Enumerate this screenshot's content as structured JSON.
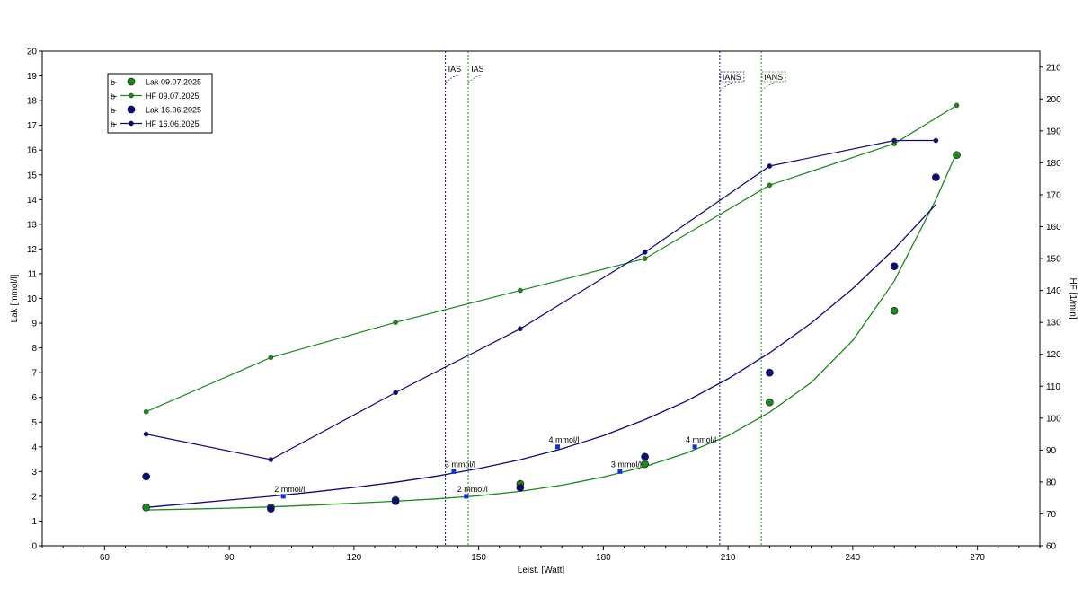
{
  "chart_data": {
    "type": "line",
    "xlabel": "Leist. [Watt]",
    "ylabel_left": "Lak [mmol/l]",
    "ylabel_right": "HF [1/min]",
    "xlim": [
      45,
      285
    ],
    "xticks": [
      60,
      90,
      120,
      150,
      180,
      210,
      240,
      270
    ],
    "ylim_left": [
      0,
      20
    ],
    "yticks_left": [
      0,
      1,
      2,
      3,
      4,
      5,
      6,
      7,
      8,
      9,
      10,
      11,
      12,
      13,
      14,
      15,
      16,
      17,
      18,
      19,
      20
    ],
    "ylim_right": [
      60,
      215
    ],
    "yticks_right": [
      60,
      70,
      80,
      90,
      100,
      110,
      120,
      130,
      140,
      150,
      160,
      170,
      180,
      190,
      200,
      210
    ],
    "grid": false,
    "legend_position": "top-left",
    "legend": [
      {
        "label": "Lak 09.07.2025",
        "color": "#1a8a1a",
        "kind": "dot"
      },
      {
        "label": "HF 09.07.2025",
        "color": "#1a8a1a",
        "kind": "line"
      },
      {
        "label": "Lak 16.06.2025",
        "color": "#0a0a80",
        "kind": "dot"
      },
      {
        "label": "HF 16.06.2025",
        "color": "#0a0a80",
        "kind": "line"
      }
    ],
    "series": [
      {
        "name": "Lak 09.07.2025",
        "axis": "left",
        "color": "#1a8a1a",
        "kind": "dot",
        "x": [
          70,
          100,
          130,
          160,
          190,
          220,
          250,
          265
        ],
        "y": [
          1.55,
          1.55,
          1.85,
          2.5,
          3.3,
          5.8,
          9.5,
          15.8
        ]
      },
      {
        "name": "HF 09.07.2025",
        "axis": "right",
        "color": "#1a8a1a",
        "kind": "line",
        "x": [
          70,
          100,
          130,
          160,
          190,
          220,
          250,
          265
        ],
        "y": [
          102,
          119,
          130,
          140,
          150,
          173,
          186,
          198
        ]
      },
      {
        "name": "Lak 16.06.2025",
        "axis": "left",
        "color": "#0a0a80",
        "kind": "dot",
        "x": [
          70,
          100,
          130,
          160,
          190,
          220,
          250,
          260
        ],
        "y": [
          2.8,
          1.5,
          1.8,
          2.35,
          3.6,
          7.0,
          11.3,
          14.9
        ]
      },
      {
        "name": "HF 16.06.2025",
        "axis": "right",
        "color": "#0a0a80",
        "kind": "line",
        "x": [
          70,
          100,
          130,
          160,
          190,
          220,
          250,
          260
        ],
        "y": [
          95,
          87,
          108,
          128,
          152,
          179,
          187,
          187
        ]
      }
    ],
    "fit_curves": [
      {
        "series": "Lak 09.07.2025",
        "color": "#1a8a1a",
        "x": [
          70,
          80,
          90,
          100,
          110,
          120,
          130,
          140,
          150,
          160,
          170,
          180,
          190,
          200,
          210,
          220,
          230,
          240,
          250,
          260,
          265
        ],
        "y": [
          1.45,
          1.48,
          1.52,
          1.57,
          1.64,
          1.72,
          1.8,
          1.9,
          2.02,
          2.2,
          2.45,
          2.78,
          3.2,
          3.75,
          4.45,
          5.4,
          6.6,
          8.3,
          10.7,
          14.0,
          15.9
        ]
      },
      {
        "series": "Lak 16.06.2025",
        "color": "#0a0a80",
        "x": [
          70,
          80,
          90,
          100,
          110,
          120,
          130,
          140,
          150,
          160,
          170,
          180,
          190,
          200,
          210,
          220,
          230,
          240,
          250,
          260
        ],
        "y": [
          1.55,
          1.7,
          1.85,
          2.0,
          2.17,
          2.36,
          2.57,
          2.82,
          3.12,
          3.48,
          3.92,
          4.45,
          5.1,
          5.85,
          6.75,
          7.8,
          9.0,
          10.4,
          12.0,
          13.8
        ]
      }
    ],
    "threshold_markers": [
      {
        "label": "2 mmol/l",
        "x": 103,
        "y": 2.0,
        "curve": "Lak 16.06.2025"
      },
      {
        "label": "3 mmol/l",
        "x": 144,
        "y": 3.0,
        "curve": "Lak 16.06.2025"
      },
      {
        "label": "4 mmol/l",
        "x": 169,
        "y": 4.0,
        "curve": "Lak 16.06.2025"
      },
      {
        "label": "2 mmol/l",
        "x": 147,
        "y": 2.0,
        "curve": "Lak 09.07.2025"
      },
      {
        "label": "3 mmol/l",
        "x": 184,
        "y": 3.0,
        "curve": "Lak 09.07.2025"
      },
      {
        "label": "4 mmol/l",
        "x": 202,
        "y": 4.0,
        "curve": "Lak 09.07.2025"
      }
    ],
    "threshold_lines": [
      {
        "label": "IAS",
        "x": 142,
        "color": "#0a0a80"
      },
      {
        "label": "IAS",
        "x": 147.5,
        "color": "#1a8a1a"
      },
      {
        "label": "IANS",
        "x": 208,
        "color": "#0a0a80"
      },
      {
        "label": "IANS",
        "x": 218,
        "color": "#1a8a1a"
      }
    ]
  }
}
